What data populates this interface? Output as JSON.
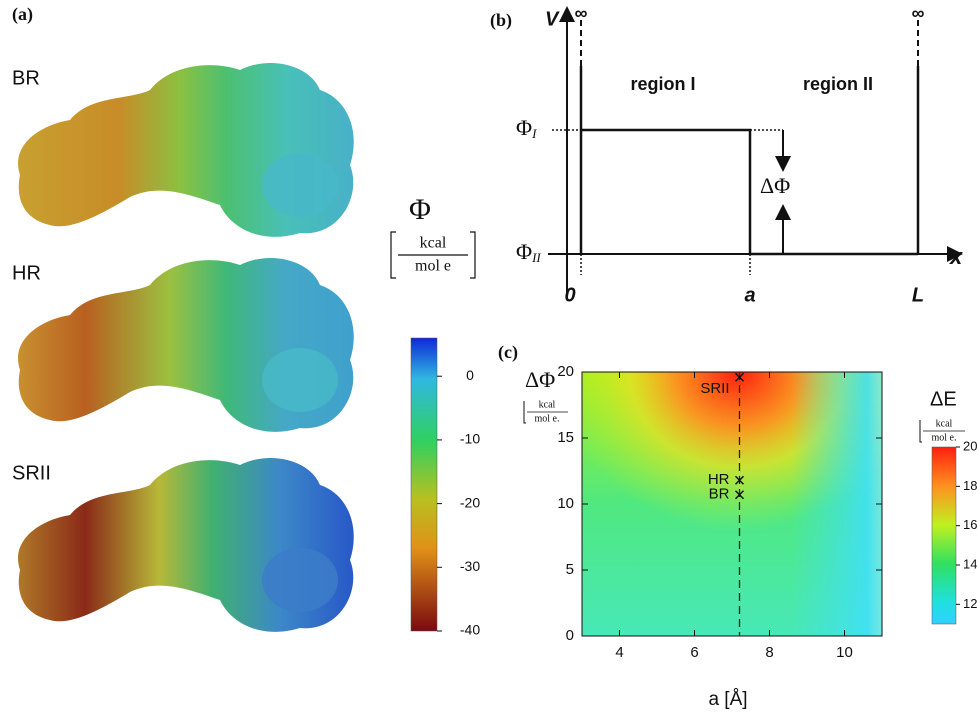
{
  "panel_a": {
    "label": "(a)",
    "molecules": [
      "BR",
      "HR",
      "SRII"
    ],
    "colorbar": {
      "symbol": "Φ",
      "unit_top": "kcal",
      "unit_bottom": "mol e",
      "lim": [
        -40,
        6
      ],
      "ticks": [
        0,
        -10,
        -20,
        -30,
        -40
      ]
    }
  },
  "panel_b": {
    "label": "(b)",
    "y_axis": "V",
    "x_axis": "x",
    "infinity": [
      "∞",
      "∞"
    ],
    "regions": [
      "region I",
      "region II"
    ],
    "levels": [
      {
        "symbol": "Φ",
        "subscript": "I"
      },
      {
        "symbol": "Φ",
        "subscript": "II"
      }
    ],
    "delta": "ΔΦ",
    "x_marks": [
      "0",
      "a",
      "L"
    ]
  },
  "chart_data": {
    "type": "heatmap",
    "title": "(c)",
    "ylabel": "ΔΦ",
    "ylabel_unit_top": "kcal",
    "ylabel_unit_bottom": "mol e.",
    "xlabel": "a  [Å]",
    "xlim": [
      3,
      11
    ],
    "xticks": [
      4,
      6,
      8,
      10
    ],
    "ylim": [
      0,
      20
    ],
    "yticks": [
      0,
      5,
      10,
      15,
      20
    ],
    "guide_x": 7.2,
    "points": [
      {
        "label": "SRII",
        "x": 7.2,
        "y": 19.6
      },
      {
        "label": "HR",
        "x": 7.2,
        "y": 11.8
      },
      {
        "label": "BR",
        "x": 7.2,
        "y": 10.7
      }
    ],
    "colorbar": {
      "label": "ΔE",
      "unit_top": "kcal",
      "unit_bottom": "mol e.",
      "lim": [
        11,
        20
      ],
      "ticks": [
        20,
        18,
        16,
        14,
        12
      ]
    }
  }
}
